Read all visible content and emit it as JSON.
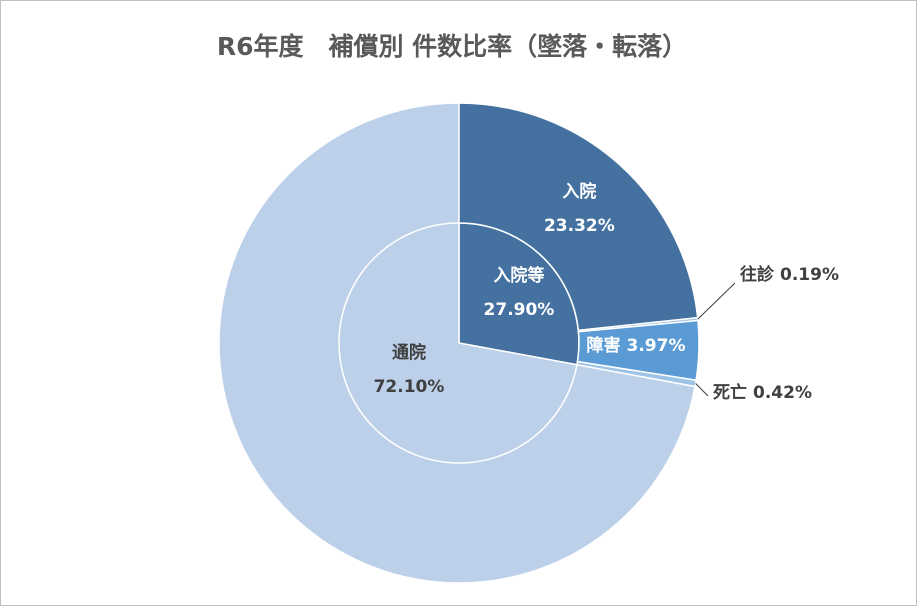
{
  "chart_data": {
    "type": "nested-pie",
    "title": "R6年度　補償別 件数比率（墜落・転落）",
    "inner": {
      "categories": [
        "入院等",
        "通院"
      ],
      "values": [
        27.9,
        72.1
      ],
      "value_labels": [
        "27.90%",
        "72.10%"
      ],
      "colors": [
        "#44719f",
        "#bdd0ea"
      ]
    },
    "outer": {
      "categories": [
        "入院",
        "往診",
        "障害",
        "死亡"
      ],
      "values": [
        23.32,
        0.19,
        3.97,
        0.42
      ],
      "value_labels": [
        "23.32%",
        "0.19%",
        "3.97%",
        "0.42%"
      ],
      "colors": [
        "#44719f",
        "#9dc3e6",
        "#5b9bd5",
        "#9dc3e6"
      ]
    }
  }
}
